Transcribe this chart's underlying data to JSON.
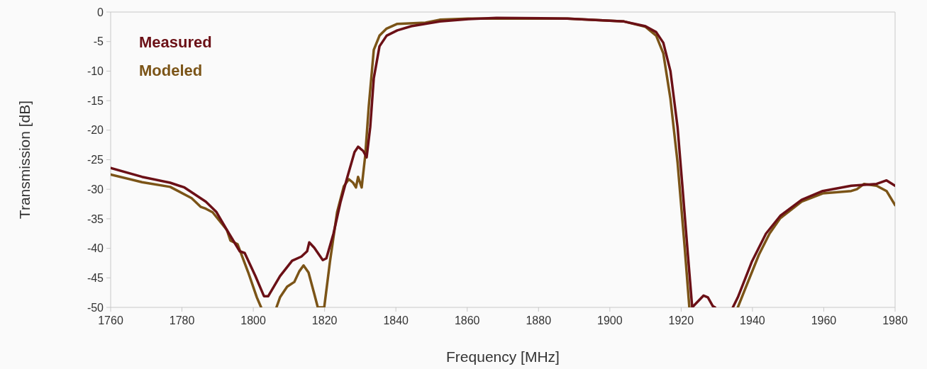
{
  "chart_data": {
    "type": "line",
    "xlabel": "Frequency [MHz]",
    "ylabel": "Transmission [dB]",
    "xlim": [
      1760,
      1980
    ],
    "xticks": [
      1760,
      1780,
      1800,
      1820,
      1840,
      1860,
      1880,
      1900,
      1920,
      1940,
      1960,
      1980
    ],
    "ylim": [
      -50,
      0
    ],
    "yticks": [
      -50,
      -45,
      -40,
      -35,
      -30,
      -25,
      -20,
      -15,
      -10,
      -5,
      0
    ],
    "grid": false,
    "legend": "top left",
    "line_style": "solid",
    "marker": "none",
    "series": [
      {
        "name": "Measured",
        "color": "#6b1016",
        "x": [
          1760,
          1768.8,
          1776.7,
          1780.7,
          1786.7,
          1789.6,
          1792.6,
          1796.2,
          1797.6,
          1800.6,
          1803,
          1804.2,
          1807.5,
          1810.9,
          1813.5,
          1815.1,
          1815.7,
          1817.1,
          1819.5,
          1820.5,
          1822.5,
          1824.5,
          1826.4,
          1828.4,
          1829.4,
          1830.8,
          1831.8,
          1832.8,
          1833.8,
          1835.4,
          1837.4,
          1840.4,
          1844.3,
          1852.3,
          1860.3,
          1868.2,
          1888.1,
          1904,
          1910,
          1913,
          1915,
          1917,
          1919,
          1920.3,
          1921.9,
          1923.1,
          1923.9,
          1926.3,
          1927.5,
          1928.9,
          1929.5,
          1932,
          1934.5,
          1935.9,
          1939.8,
          1943.8,
          1947.8,
          1953.8,
          1959.7,
          1967.7,
          1974.8,
          1977.6,
          1980
        ],
        "values": [
          -26.4,
          -27.9,
          -28.9,
          -29.7,
          -32.1,
          -33.8,
          -36.9,
          -40.5,
          -40.8,
          -44.7,
          -48.1,
          -48.1,
          -44.7,
          -42.1,
          -41.4,
          -40.5,
          -39.0,
          -39.9,
          -42.0,
          -41.7,
          -37.5,
          -32.1,
          -27.9,
          -23.7,
          -22.8,
          -23.5,
          -24.6,
          -19.5,
          -11.2,
          -5.8,
          -4.0,
          -3.1,
          -2.4,
          -1.6,
          -1.2,
          -1.0,
          -1.1,
          -1.6,
          -2.4,
          -3.4,
          -5.2,
          -10,
          -19.5,
          -29.1,
          -41.1,
          -50,
          -49.5,
          -48,
          -48.3,
          -49.8,
          -50,
          null,
          -50,
          -48.3,
          -42.3,
          -37.5,
          -34.5,
          -31.8,
          -30.3,
          -29.4,
          -29.1,
          -28.5,
          -29.4
        ]
      },
      {
        "name": "Modeled",
        "color": "#7b5417",
        "x": [
          1760,
          1768.8,
          1776.7,
          1782.7,
          1785.3,
          1786.7,
          1788.6,
          1792.6,
          1793.6,
          1795.6,
          1798.6,
          1801,
          1802.2,
          1804,
          1806.5,
          1807.5,
          1809.5,
          1811.5,
          1812.9,
          1814.1,
          1815.5,
          1817.1,
          1818.1,
          1819.9,
          1821.5,
          1823.5,
          1825.4,
          1826.8,
          1828,
          1828.8,
          1829.4,
          1830.4,
          1831.4,
          1832.4,
          1833.8,
          1835.4,
          1837.4,
          1840.4,
          1848.3,
          1852.3,
          1860.3,
          1868.2,
          1888.1,
          1904,
          1910,
          1913,
          1915,
          1917,
          1919,
          1921,
          1922.3,
          1929,
          1935.9,
          1937.8,
          1941.8,
          1944.8,
          1947.8,
          1953.8,
          1959.7,
          1967.7,
          1969.3,
          1971.3,
          1974.8,
          1977.6,
          1980
        ],
        "values": [
          -27.5,
          -28.8,
          -29.6,
          -31.5,
          -33.0,
          -33.3,
          -33.9,
          -36.9,
          -38.7,
          -39.3,
          -44.1,
          -48.3,
          -50,
          null,
          -50,
          -48.3,
          -46.5,
          -45.7,
          -43.9,
          -42.9,
          -44.1,
          -47.7,
          -50,
          -50,
          -42.3,
          -33.9,
          -29.5,
          -28.3,
          -28.9,
          -29.7,
          -27.9,
          -29.7,
          -24.3,
          -15.9,
          -6.4,
          -4.0,
          -2.8,
          -2.0,
          -1.8,
          -1.3,
          -1.1,
          -1.1,
          -1.1,
          -1.6,
          -2.5,
          -4.0,
          -7.0,
          -14.7,
          -25.5,
          -39.9,
          -50,
          null,
          -50,
          -47.1,
          -41.1,
          -37.5,
          -34.9,
          -32.1,
          -30.7,
          -30.3,
          -30.0,
          -29.1,
          -29.4,
          -30.3,
          -32.7
        ]
      }
    ]
  }
}
